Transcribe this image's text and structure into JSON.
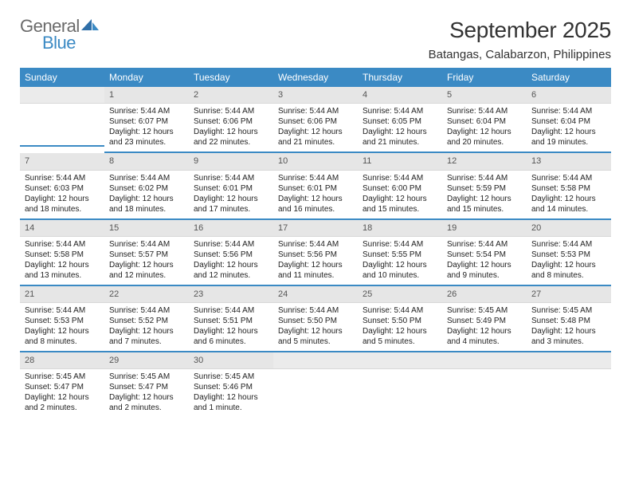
{
  "logo": {
    "general": "General",
    "blue": "Blue"
  },
  "title": "September 2025",
  "location": "Batangas, Calabarzon, Philippines",
  "colors": {
    "header_bg": "#3b8ac4",
    "header_text": "#ffffff",
    "daynum_bg": "#e6e6e6",
    "row_border": "#3b8ac4",
    "text": "#222222",
    "logo_gray": "#6b6b6b",
    "logo_blue": "#3b8ac4"
  },
  "weekdays": [
    "Sunday",
    "Monday",
    "Tuesday",
    "Wednesday",
    "Thursday",
    "Friday",
    "Saturday"
  ],
  "weeks": [
    [
      null,
      {
        "d": "1",
        "sr": "Sunrise: 5:44 AM",
        "ss": "Sunset: 6:07 PM",
        "dl": "Daylight: 12 hours and 23 minutes."
      },
      {
        "d": "2",
        "sr": "Sunrise: 5:44 AM",
        "ss": "Sunset: 6:06 PM",
        "dl": "Daylight: 12 hours and 22 minutes."
      },
      {
        "d": "3",
        "sr": "Sunrise: 5:44 AM",
        "ss": "Sunset: 6:06 PM",
        "dl": "Daylight: 12 hours and 21 minutes."
      },
      {
        "d": "4",
        "sr": "Sunrise: 5:44 AM",
        "ss": "Sunset: 6:05 PM",
        "dl": "Daylight: 12 hours and 21 minutes."
      },
      {
        "d": "5",
        "sr": "Sunrise: 5:44 AM",
        "ss": "Sunset: 6:04 PM",
        "dl": "Daylight: 12 hours and 20 minutes."
      },
      {
        "d": "6",
        "sr": "Sunrise: 5:44 AM",
        "ss": "Sunset: 6:04 PM",
        "dl": "Daylight: 12 hours and 19 minutes."
      }
    ],
    [
      {
        "d": "7",
        "sr": "Sunrise: 5:44 AM",
        "ss": "Sunset: 6:03 PM",
        "dl": "Daylight: 12 hours and 18 minutes."
      },
      {
        "d": "8",
        "sr": "Sunrise: 5:44 AM",
        "ss": "Sunset: 6:02 PM",
        "dl": "Daylight: 12 hours and 18 minutes."
      },
      {
        "d": "9",
        "sr": "Sunrise: 5:44 AM",
        "ss": "Sunset: 6:01 PM",
        "dl": "Daylight: 12 hours and 17 minutes."
      },
      {
        "d": "10",
        "sr": "Sunrise: 5:44 AM",
        "ss": "Sunset: 6:01 PM",
        "dl": "Daylight: 12 hours and 16 minutes."
      },
      {
        "d": "11",
        "sr": "Sunrise: 5:44 AM",
        "ss": "Sunset: 6:00 PM",
        "dl": "Daylight: 12 hours and 15 minutes."
      },
      {
        "d": "12",
        "sr": "Sunrise: 5:44 AM",
        "ss": "Sunset: 5:59 PM",
        "dl": "Daylight: 12 hours and 15 minutes."
      },
      {
        "d": "13",
        "sr": "Sunrise: 5:44 AM",
        "ss": "Sunset: 5:58 PM",
        "dl": "Daylight: 12 hours and 14 minutes."
      }
    ],
    [
      {
        "d": "14",
        "sr": "Sunrise: 5:44 AM",
        "ss": "Sunset: 5:58 PM",
        "dl": "Daylight: 12 hours and 13 minutes."
      },
      {
        "d": "15",
        "sr": "Sunrise: 5:44 AM",
        "ss": "Sunset: 5:57 PM",
        "dl": "Daylight: 12 hours and 12 minutes."
      },
      {
        "d": "16",
        "sr": "Sunrise: 5:44 AM",
        "ss": "Sunset: 5:56 PM",
        "dl": "Daylight: 12 hours and 12 minutes."
      },
      {
        "d": "17",
        "sr": "Sunrise: 5:44 AM",
        "ss": "Sunset: 5:56 PM",
        "dl": "Daylight: 12 hours and 11 minutes."
      },
      {
        "d": "18",
        "sr": "Sunrise: 5:44 AM",
        "ss": "Sunset: 5:55 PM",
        "dl": "Daylight: 12 hours and 10 minutes."
      },
      {
        "d": "19",
        "sr": "Sunrise: 5:44 AM",
        "ss": "Sunset: 5:54 PM",
        "dl": "Daylight: 12 hours and 9 minutes."
      },
      {
        "d": "20",
        "sr": "Sunrise: 5:44 AM",
        "ss": "Sunset: 5:53 PM",
        "dl": "Daylight: 12 hours and 8 minutes."
      }
    ],
    [
      {
        "d": "21",
        "sr": "Sunrise: 5:44 AM",
        "ss": "Sunset: 5:53 PM",
        "dl": "Daylight: 12 hours and 8 minutes."
      },
      {
        "d": "22",
        "sr": "Sunrise: 5:44 AM",
        "ss": "Sunset: 5:52 PM",
        "dl": "Daylight: 12 hours and 7 minutes."
      },
      {
        "d": "23",
        "sr": "Sunrise: 5:44 AM",
        "ss": "Sunset: 5:51 PM",
        "dl": "Daylight: 12 hours and 6 minutes."
      },
      {
        "d": "24",
        "sr": "Sunrise: 5:44 AM",
        "ss": "Sunset: 5:50 PM",
        "dl": "Daylight: 12 hours and 5 minutes."
      },
      {
        "d": "25",
        "sr": "Sunrise: 5:44 AM",
        "ss": "Sunset: 5:50 PM",
        "dl": "Daylight: 12 hours and 5 minutes."
      },
      {
        "d": "26",
        "sr": "Sunrise: 5:45 AM",
        "ss": "Sunset: 5:49 PM",
        "dl": "Daylight: 12 hours and 4 minutes."
      },
      {
        "d": "27",
        "sr": "Sunrise: 5:45 AM",
        "ss": "Sunset: 5:48 PM",
        "dl": "Daylight: 12 hours and 3 minutes."
      }
    ],
    [
      {
        "d": "28",
        "sr": "Sunrise: 5:45 AM",
        "ss": "Sunset: 5:47 PM",
        "dl": "Daylight: 12 hours and 2 minutes."
      },
      {
        "d": "29",
        "sr": "Sunrise: 5:45 AM",
        "ss": "Sunset: 5:47 PM",
        "dl": "Daylight: 12 hours and 2 minutes."
      },
      {
        "d": "30",
        "sr": "Sunrise: 5:45 AM",
        "ss": "Sunset: 5:46 PM",
        "dl": "Daylight: 12 hours and 1 minute."
      },
      null,
      null,
      null,
      null
    ]
  ]
}
